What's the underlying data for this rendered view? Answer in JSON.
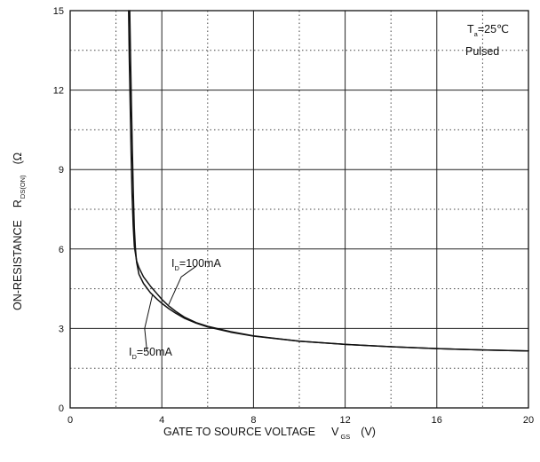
{
  "chart_data": {
    "type": "line",
    "title": "",
    "xlabel": {
      "text": "GATE TO SOURCE VOLTAGE",
      "symbol": "V",
      "subscript": "GS",
      "unit": "(V)"
    },
    "ylabel": {
      "text": "ON-RESISTANCE",
      "symbol": "R",
      "subscript": "DS(ON)",
      "unit": "(Ω"
    },
    "xlim": [
      0,
      20
    ],
    "ylim": [
      0,
      15
    ],
    "xticks": [
      0,
      4,
      8,
      12,
      16,
      20
    ],
    "yticks": [
      0,
      3,
      6,
      9,
      12,
      15
    ],
    "x_minor_grid": [
      2,
      6,
      10,
      14,
      18
    ],
    "y_minor_grid": [
      1.5,
      4.5,
      7.5,
      10.5,
      13.5
    ],
    "grid": true,
    "annotation": {
      "line1_prefix": "T",
      "line1_sub": "a",
      "line1_suffix": "=25℃",
      "line2": "Pulsed"
    },
    "series": [
      {
        "name": "I_D=100mA",
        "label_prefix": "I",
        "label_sub": "D",
        "label_suffix": "=100mA",
        "x": [
          2.55,
          2.58,
          2.62,
          2.66,
          2.7,
          2.75,
          2.8,
          2.9,
          3.0,
          3.2,
          3.5,
          3.8,
          4.0,
          4.3,
          4.6,
          5.0,
          5.5,
          6.0,
          7.0,
          8.0,
          10.0,
          12.0,
          14.0,
          16.0,
          18.0,
          20.0
        ],
        "y": [
          15.0,
          13.2,
          11.4,
          9.6,
          8.1,
          6.9,
          6.1,
          5.55,
          5.3,
          4.95,
          4.6,
          4.3,
          4.1,
          3.85,
          3.65,
          3.42,
          3.22,
          3.08,
          2.88,
          2.72,
          2.52,
          2.4,
          2.31,
          2.24,
          2.19,
          2.15
        ]
      },
      {
        "name": "I_D=50mA",
        "label_prefix": "I",
        "label_sub": "D",
        "label_suffix": "=50mA",
        "x": [
          2.6,
          2.64,
          2.68,
          2.72,
          2.76,
          2.8,
          2.85,
          2.9,
          3.0,
          3.2,
          3.5,
          3.8,
          4.0,
          4.3,
          4.6,
          5.0,
          5.5,
          6.0,
          7.0,
          8.0,
          10.0,
          12.0,
          14.0,
          16.0,
          18.0,
          20.0
        ],
        "y": [
          15.0,
          13.0,
          11.2,
          9.5,
          8.0,
          6.8,
          6.0,
          5.5,
          5.05,
          4.7,
          4.35,
          4.1,
          3.95,
          3.75,
          3.58,
          3.38,
          3.2,
          3.06,
          2.86,
          2.71,
          2.52,
          2.4,
          2.31,
          2.24,
          2.19,
          2.15
        ]
      }
    ],
    "colors": {
      "line": "#111111",
      "background": "#ffffff"
    }
  }
}
